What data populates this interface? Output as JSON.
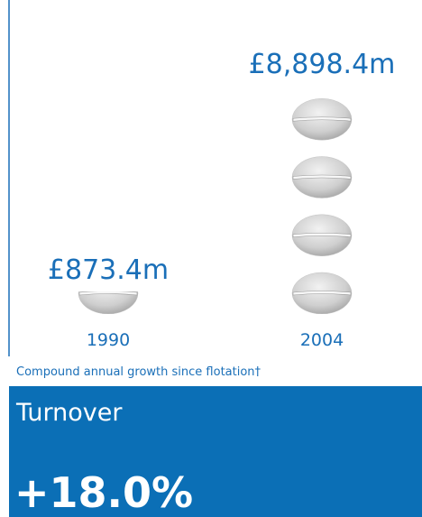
{
  "chart_data": {
    "type": "pictogram",
    "categories": [
      "1990",
      "2004"
    ],
    "values": [
      873.4,
      8898.4
    ],
    "value_labels": [
      "£873.4m",
      "£8,898.4m"
    ],
    "color": "#c4c4c4",
    "label_color": "#1a6fb8"
  },
  "panel": {
    "note": "Compound annual growth since flotation†",
    "title": "Turnover",
    "value": "+18.0%"
  }
}
